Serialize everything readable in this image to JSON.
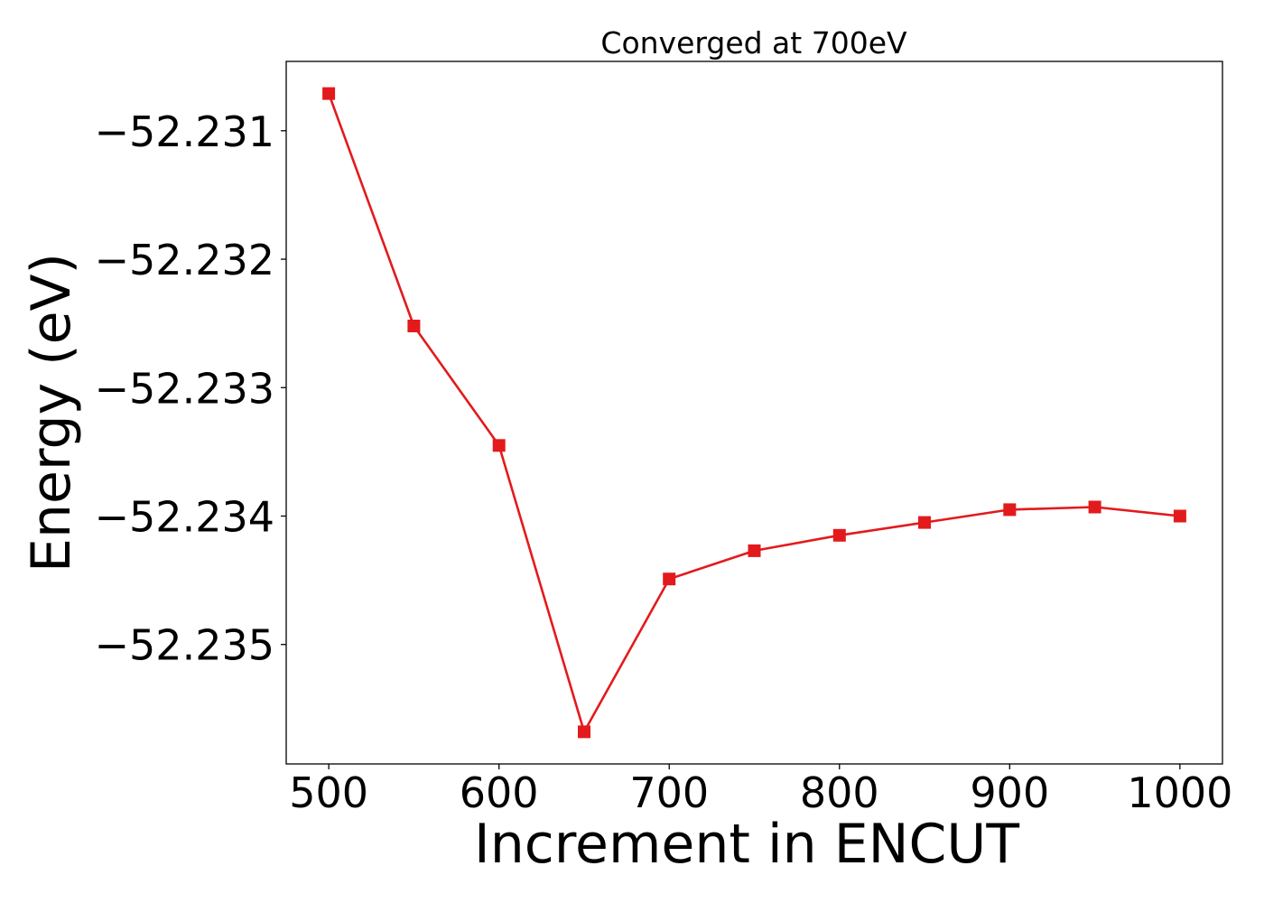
{
  "chart_data": {
    "type": "line",
    "title": "Converged at 700eV",
    "xlabel": "Increment in ENCUT",
    "ylabel": "Energy (eV)",
    "xlim": [
      475,
      1025
    ],
    "ylim": [
      -52.23593,
      -52.23046
    ],
    "x_ticks": [
      500,
      600,
      700,
      800,
      900,
      1000
    ],
    "x_tick_labels": [
      "500",
      "600",
      "700",
      "800",
      "900",
      "1000"
    ],
    "y_ticks": [
      -52.231,
      -52.232,
      -52.233,
      -52.234,
      -52.235
    ],
    "y_tick_labels": [
      "−52.231",
      "−52.232",
      "−52.233",
      "−52.234",
      "−52.235"
    ],
    "grid": false,
    "legend": "none",
    "series": [
      {
        "color": "#e31a1c",
        "marker": "square",
        "x": [
          500,
          550,
          600,
          650,
          700,
          750,
          800,
          850,
          900,
          950,
          1000
        ],
        "y": [
          -52.23071,
          -52.23252,
          -52.23345,
          -52.23568,
          -52.23449,
          -52.23427,
          -52.23415,
          -52.23405,
          -52.23395,
          -52.23393,
          -52.234
        ]
      }
    ]
  }
}
